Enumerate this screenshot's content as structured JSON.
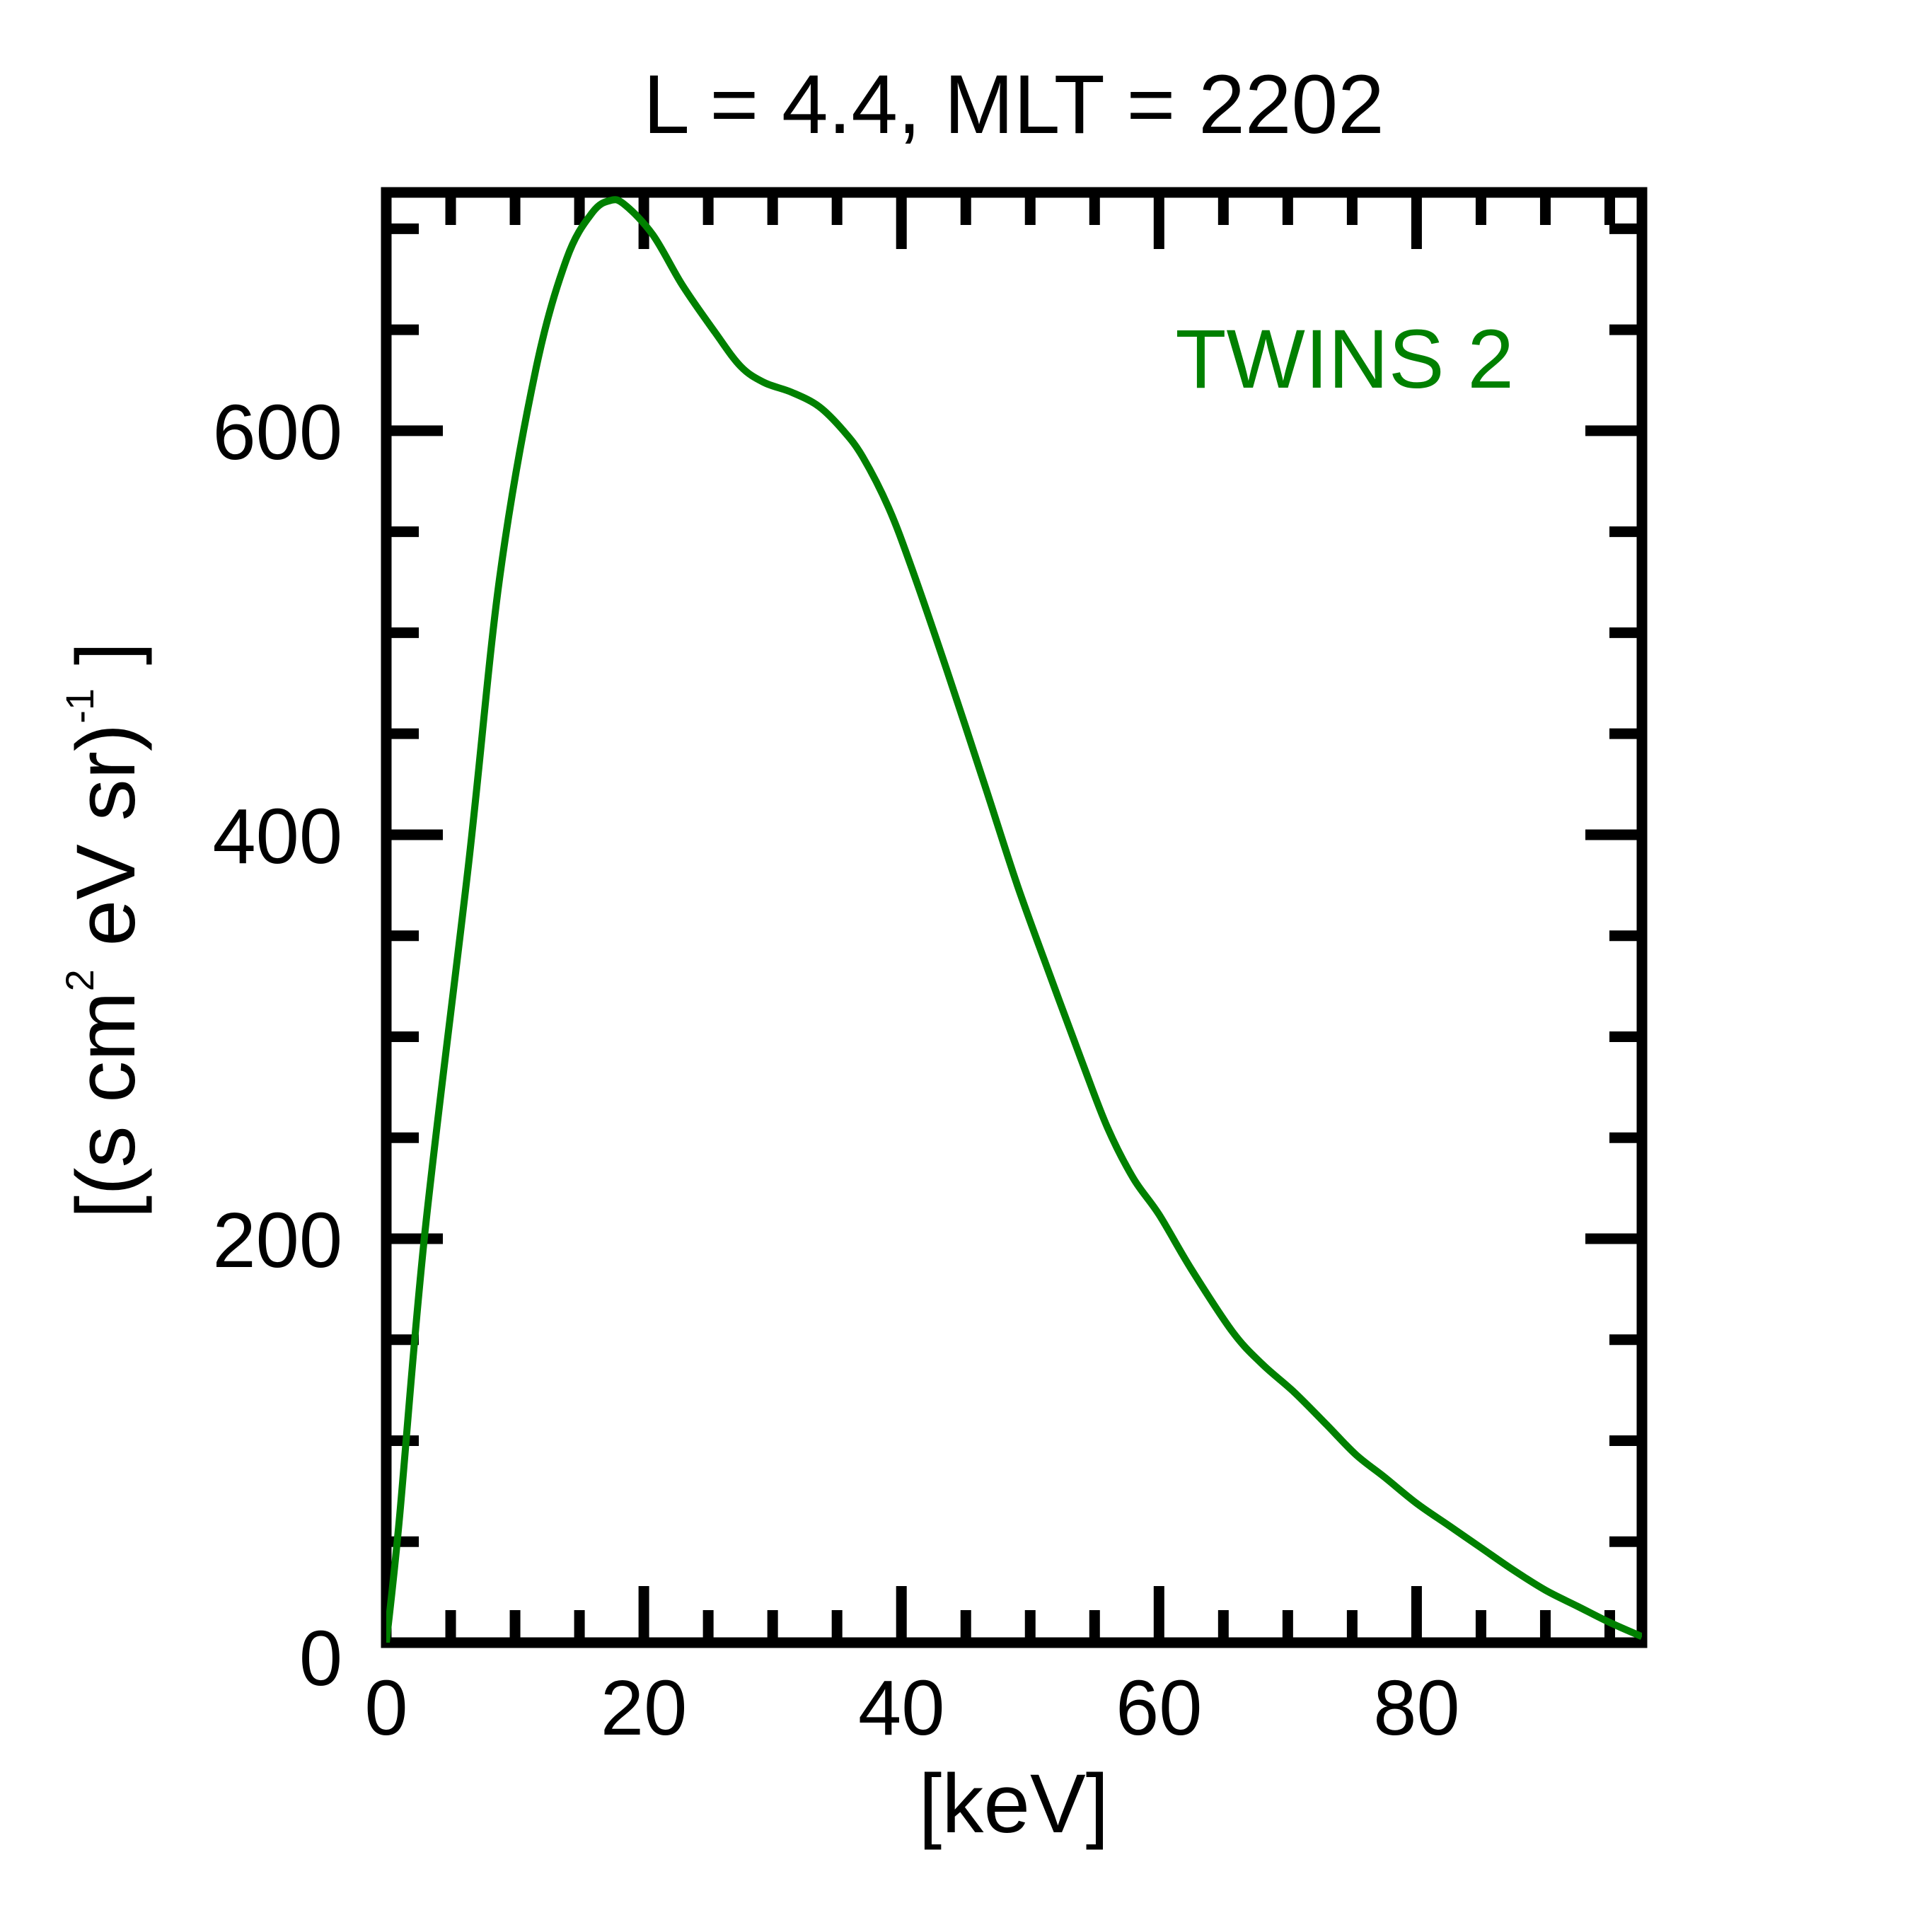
{
  "chart_data": {
    "type": "line",
    "title": "L =  4.4, MLT = 2202",
    "xlabel": "[keV]",
    "ylabel": {
      "prefix": "[(s cm",
      "sup1": "2",
      "middle": " eV sr)",
      "sup2": "-1",
      "suffix": " ]"
    },
    "xlim": [
      0,
      97.5
    ],
    "ylim": [
      0,
      718
    ],
    "x_ticks": [
      0,
      20,
      40,
      60,
      80
    ],
    "x_tick_labels": [
      "0",
      "20",
      "40",
      "60",
      "80"
    ],
    "x_minor_step": 5,
    "y_ticks": [
      0,
      200,
      400,
      600
    ],
    "y_tick_labels": [
      "0",
      "200",
      "400",
      "600"
    ],
    "y_minor_step": 50,
    "grid": false,
    "legend": {
      "position": "top-right"
    },
    "series": [
      {
        "name": "TWINS 2",
        "color": "#008000",
        "x": [
          0,
          1,
          3,
          6.4,
          8.8,
          11.6,
          14,
          16,
          17.4,
          18.5,
          20.7,
          23,
          25.5,
          27.5,
          29.3,
          31.5,
          33.6,
          35.5,
          37,
          39,
          40.8,
          43.5,
          46.5,
          49,
          51.5,
          54,
          56,
          58,
          60,
          62.5,
          65.7,
          68,
          70.5,
          73,
          75.3,
          77.5,
          80,
          82.5,
          85,
          87.5,
          90,
          92.5,
          95,
          97.5
        ],
        "y": [
          0,
          60,
          203,
          386,
          527,
          630,
          685,
          708,
          714,
          712,
          697,
          672,
          649,
          632,
          624,
          619,
          612,
          600,
          587,
          562,
          532,
          482,
          424,
          375,
          331,
          288,
          255,
          230,
          212,
          185,
          154,
          138,
          124,
          108,
          93,
          82,
          69,
          58,
          47,
          36,
          26,
          18,
          10,
          3
        ]
      }
    ]
  }
}
